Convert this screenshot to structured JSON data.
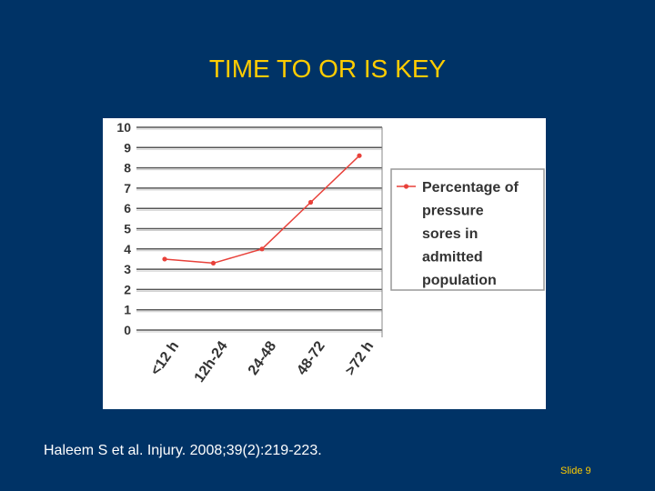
{
  "slide": {
    "title": "TIME TO OR IS KEY",
    "citation": "Haleem S et al. Injury. 2008;39(2):219-223.",
    "slide_number": "Slide 9"
  },
  "colors": {
    "background": "#003366",
    "title": "#FFCC00",
    "series": "#E8413A"
  },
  "chart_data": {
    "type": "line",
    "title": "",
    "xlabel": "",
    "ylabel": "",
    "categories": [
      "<12 h",
      "12h-24",
      "24-48",
      "48-72",
      ">72 h"
    ],
    "ylim": [
      0,
      10
    ],
    "yticks": [
      0,
      1,
      2,
      3,
      4,
      5,
      6,
      7,
      8,
      9,
      10
    ],
    "grid": true,
    "legend_position": "right",
    "series": [
      {
        "name": "Percentage of pressure sores in admitted population",
        "legend_lines": [
          "Percentage of",
          "pressure",
          "sores in",
          "admitted",
          "population"
        ],
        "values": [
          3.5,
          3.3,
          4.0,
          6.3,
          8.6
        ]
      }
    ]
  }
}
